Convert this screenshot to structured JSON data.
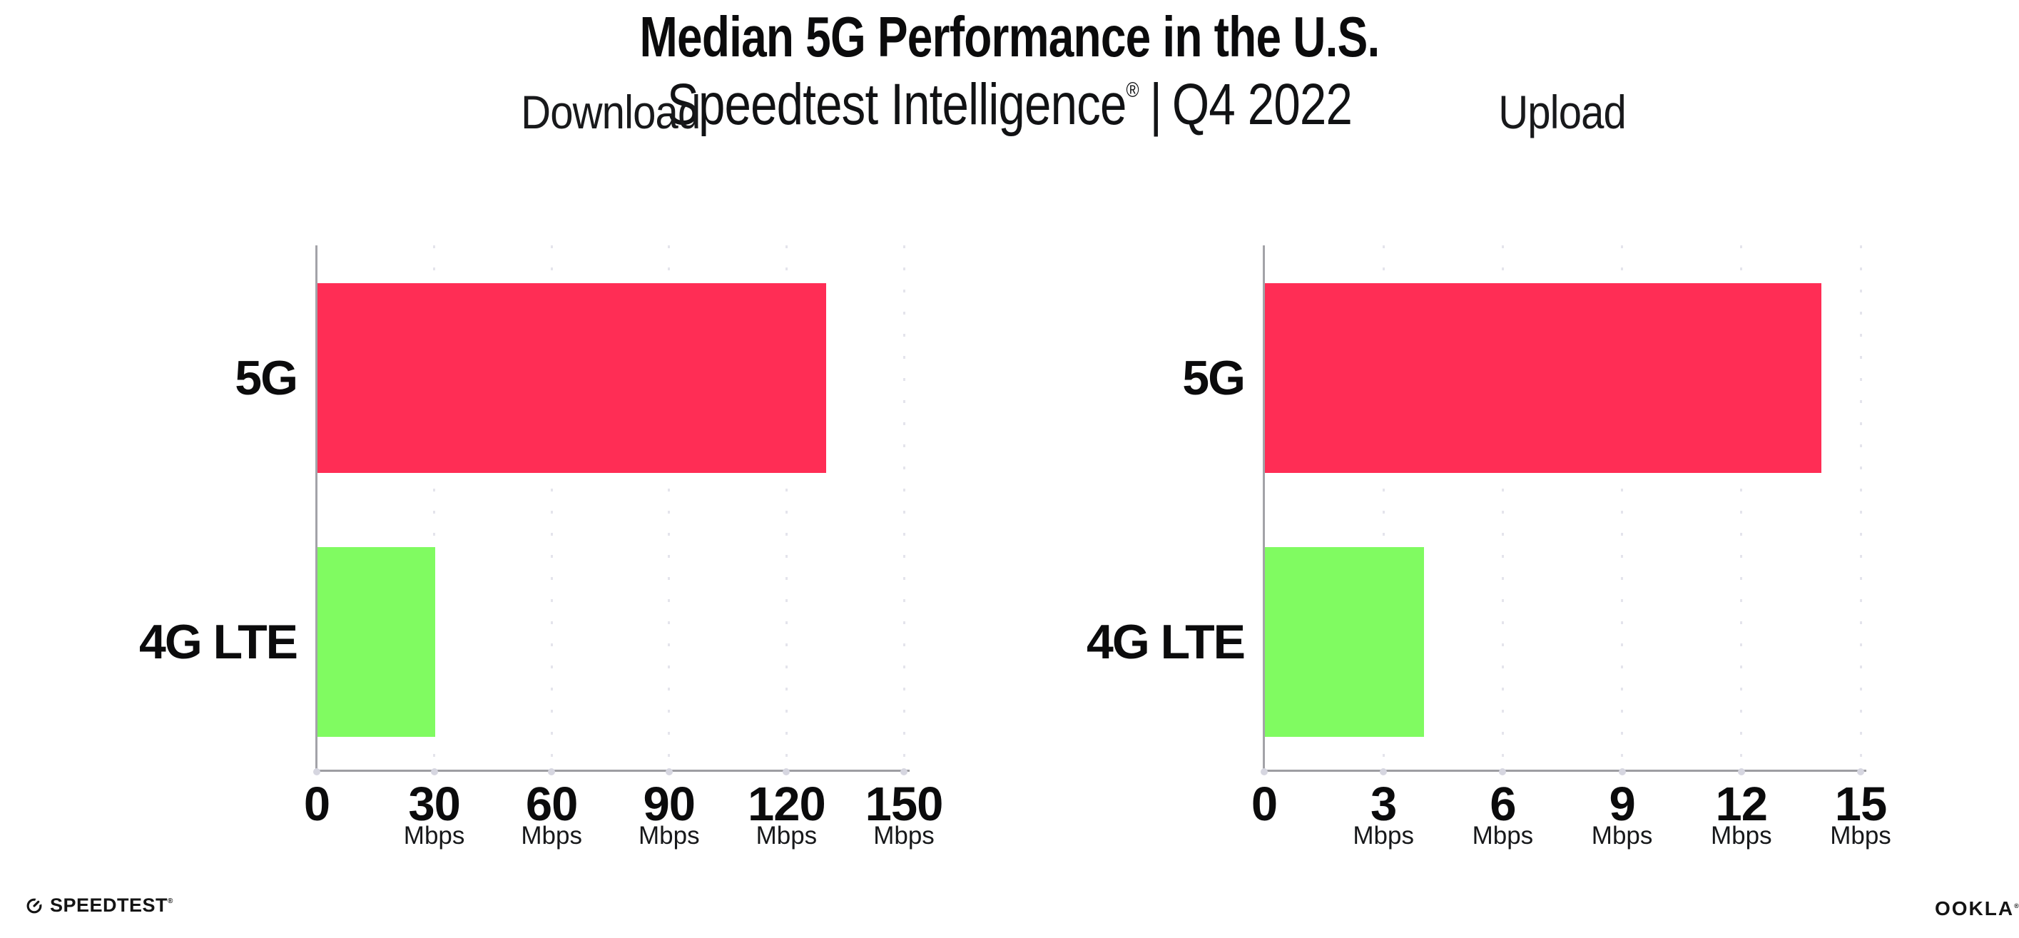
{
  "header": {
    "title": "Median 5G Performance in the U.S.",
    "subtitle_brand": "Speedtest Intelligence",
    "subtitle_reg": "®",
    "subtitle_sep": "|",
    "subtitle_period": "Q4 2022"
  },
  "chart_data": [
    {
      "type": "bar",
      "orientation": "horizontal",
      "title": "Download",
      "categories": [
        "5G",
        "4G LTE"
      ],
      "values": [
        130,
        30
      ],
      "unit": "Mbps",
      "xlim": [
        0,
        150
      ],
      "xticks": [
        0,
        30,
        60,
        90,
        120,
        150
      ],
      "bar_colors": [
        "#FF2D55",
        "#80FB61"
      ],
      "grid": "vertical-dotted",
      "legend": "none"
    },
    {
      "type": "bar",
      "orientation": "horizontal",
      "title": "Upload",
      "categories": [
        "5G",
        "4G LTE"
      ],
      "values": [
        14,
        4
      ],
      "unit": "Mbps",
      "xlim": [
        0,
        15
      ],
      "xticks": [
        0,
        3,
        6,
        9,
        12,
        15
      ],
      "bar_colors": [
        "#FF2D55",
        "#80FB61"
      ],
      "grid": "vertical-dotted",
      "legend": "none"
    }
  ],
  "footer": {
    "speedtest_label": "SPEEDTEST",
    "speedtest_mark": "®",
    "ookla_label": "OOKLA",
    "ookla_mark": "®"
  },
  "colors": {
    "bar_5g": "#FF2D55",
    "bar_4g_lte": "#80FB61",
    "axis_line": "#9D9DA2",
    "grid_dot": "#E4E4EC",
    "tick_end_dot": "#D6D6E0",
    "text": "#0F0F10",
    "background": "#FFFFFF"
  }
}
